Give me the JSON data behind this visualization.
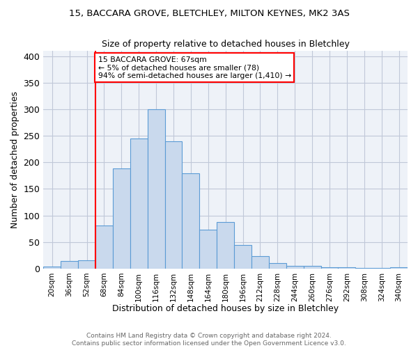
{
  "title": "15, BACCARA GROVE, BLETCHLEY, MILTON KEYNES, MK2 3AS",
  "subtitle": "Size of property relative to detached houses in Bletchley",
  "xlabel": "Distribution of detached houses by size in Bletchley",
  "ylabel": "Number of detached properties",
  "bar_color": "#c9d9ed",
  "bar_edge_color": "#5b9bd5",
  "grid_color": "#c0c8d8",
  "background_color": "#eef2f8",
  "bin_labels": [
    "20sqm",
    "36sqm",
    "52sqm",
    "68sqm",
    "84sqm",
    "100sqm",
    "116sqm",
    "132sqm",
    "148sqm",
    "164sqm",
    "180sqm",
    "196sqm",
    "212sqm",
    "228sqm",
    "244sqm",
    "260sqm",
    "276sqm",
    "292sqm",
    "308sqm",
    "324sqm",
    "340sqm"
  ],
  "bar_heights": [
    4,
    14,
    15,
    81,
    188,
    245,
    300,
    240,
    180,
    73,
    88,
    44,
    23,
    10,
    5,
    5,
    3,
    3,
    1,
    1,
    3
  ],
  "red_line_x": 3,
  "annotation_text": "15 BACCARA GROVE: 67sqm\n← 5% of detached houses are smaller (78)\n94% of semi-detached houses are larger (1,410) →",
  "annotation_box_color": "white",
  "annotation_box_edge_color": "red",
  "footer_text": "Contains HM Land Registry data © Crown copyright and database right 2024.\nContains public sector information licensed under the Open Government Licence v3.0.",
  "ylim": [
    0,
    410
  ],
  "yticks": [
    0,
    50,
    100,
    150,
    200,
    250,
    300,
    350,
    400
  ]
}
